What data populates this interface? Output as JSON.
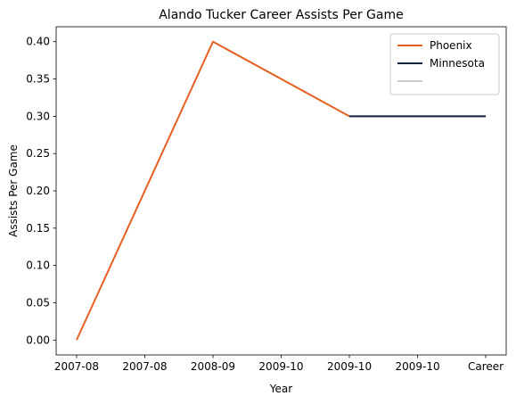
{
  "chart_data": {
    "type": "line",
    "title": "Alando Tucker Career Assists Per Game",
    "xlabel": "Year",
    "ylabel": "Assists Per Game",
    "categories": [
      "2007-08",
      "2007-08",
      "2008-09",
      "2009-10",
      "2009-10",
      "2009-10",
      "Career"
    ],
    "ylim": [
      -0.02,
      0.42
    ],
    "yticks": [
      0.0,
      0.05,
      0.1,
      0.15,
      0.2,
      0.25,
      0.3,
      0.35,
      0.4
    ],
    "ytick_labels": [
      "0.00",
      "0.05",
      "0.10",
      "0.15",
      "0.20",
      "0.25",
      "0.30",
      "0.35",
      "0.40"
    ],
    "grid": false,
    "legend_position": "top-right",
    "series": [
      {
        "name": "Phoenix",
        "color": "#E56020",
        "points": [
          [
            0,
            0.0
          ],
          [
            2,
            0.4
          ],
          [
            4,
            0.3
          ]
        ]
      },
      {
        "name": "Minnesota",
        "color": "#0C2340",
        "points": [
          [
            4,
            0.3
          ],
          [
            6,
            0.3
          ]
        ]
      },
      {
        "name": "",
        "color": "#C4CED4",
        "points": []
      }
    ]
  }
}
